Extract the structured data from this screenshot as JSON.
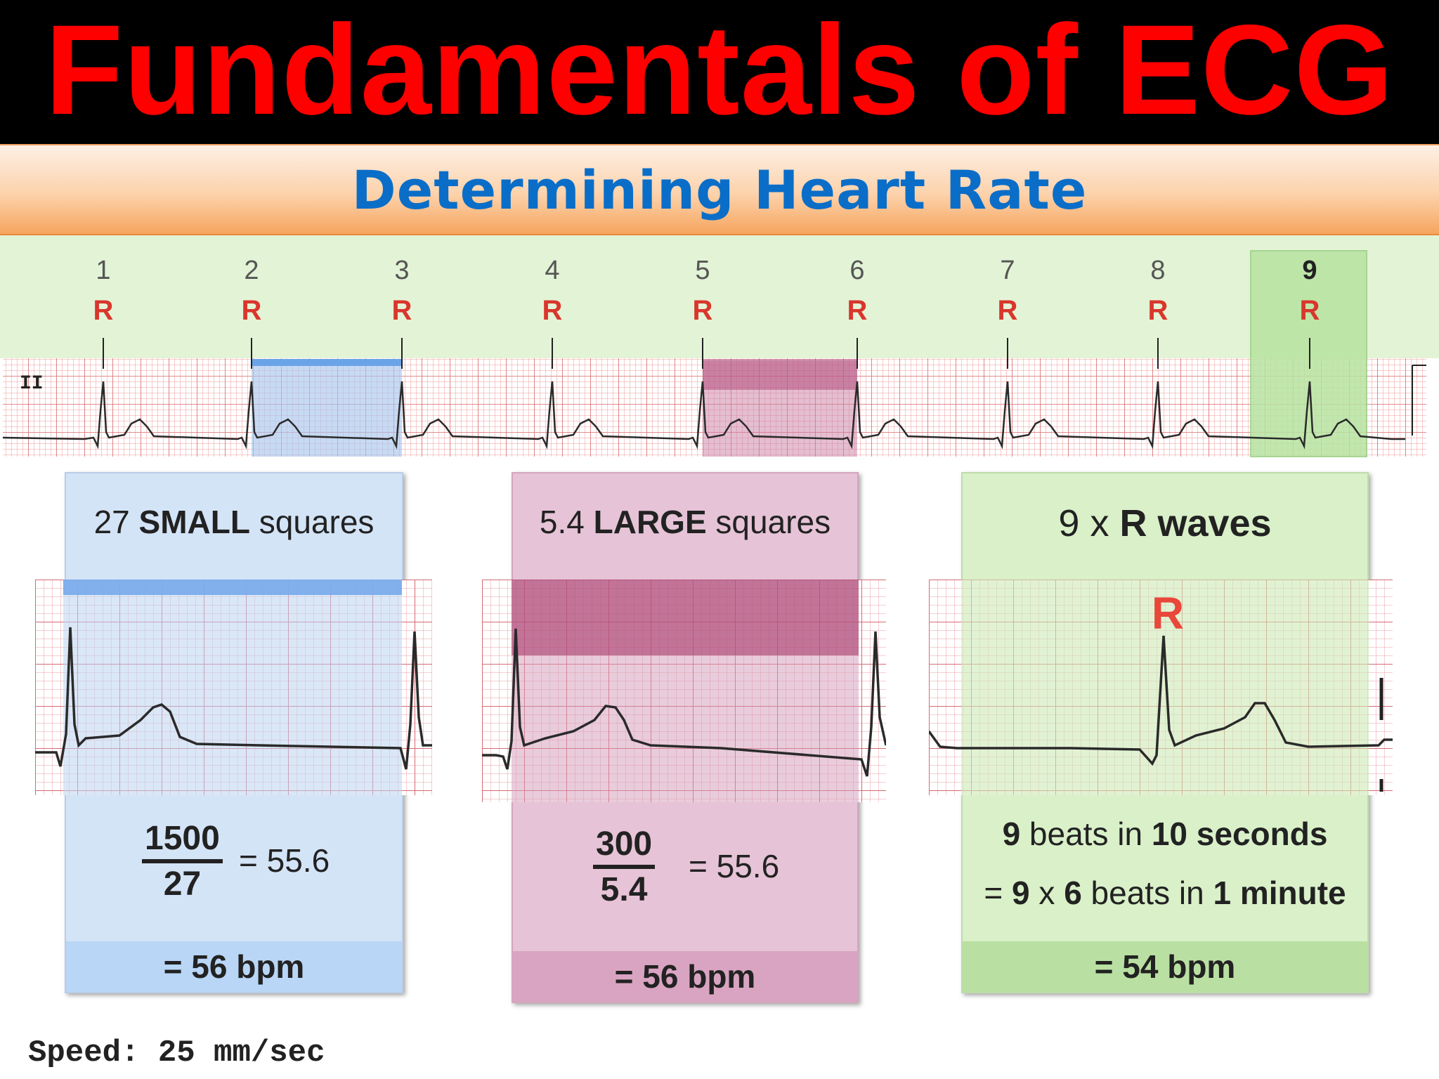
{
  "title": "Fundamentals of ECG",
  "subtitle": "Determining Heart Rate",
  "strip": {
    "lead_label": "II",
    "beat_numbers": [
      "1",
      "2",
      "3",
      "4",
      "5",
      "6",
      "7",
      "8",
      "9"
    ],
    "r_label": "R"
  },
  "panels": [
    {
      "head_pre": "27 ",
      "head_bold": "SMALL",
      "head_post": " squares",
      "numerator": "1500",
      "denominator": "27",
      "equals": "= 55.6",
      "result": "= 56 bpm",
      "color": "#d4e4f7"
    },
    {
      "head_pre": "5.4 ",
      "head_bold": "LARGE",
      "head_post": " squares",
      "numerator": "300",
      "denominator": "5.4",
      "equals": "= 55.6",
      "result": "= 56 bpm",
      "color": "#e6c3d6"
    },
    {
      "head_pre": "9 x ",
      "head_bold": "R waves",
      "head_post": "",
      "r_label": "R",
      "line1_parts": [
        "9",
        " beats in ",
        "10 seconds"
      ],
      "line2_parts": [
        "= ",
        "9",
        " x ",
        "6",
        " beats in ",
        "1 minute"
      ],
      "result": "= 54 bpm",
      "color": "#d9f0c9"
    }
  ],
  "footer": "Speed: 25 mm/sec"
}
